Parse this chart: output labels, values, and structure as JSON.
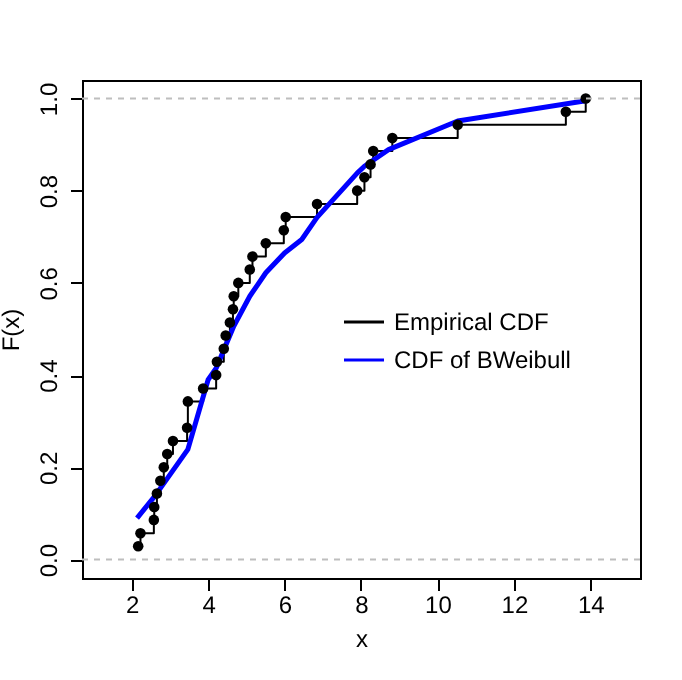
{
  "chart_data": {
    "type": "line",
    "xlabel": "x",
    "ylabel": "F(x)",
    "xlim": [
      0.7,
      15.3
    ],
    "ylim": [
      -0.04,
      1.04
    ],
    "xticks": [
      2,
      4,
      6,
      8,
      10,
      12,
      14
    ],
    "yticks": [
      {
        "value": 0,
        "label": "0.0"
      },
      0.2,
      0.4,
      0.6,
      0.8,
      {
        "value": 1,
        "label": "1.0"
      }
    ],
    "legend": "right",
    "grid": false,
    "ref_lines": [
      {
        "axis": "y",
        "value": 0,
        "color": "#bebebe",
        "line_style": "dashed"
      },
      {
        "axis": "y",
        "value": 1,
        "color": "#bebebe",
        "line_style": "dashed"
      }
    ],
    "series": [
      {
        "name": "Empirical CDF",
        "type": "step",
        "marker": "circle",
        "color": "#000000",
        "x": [
          2.17,
          2.23,
          2.58,
          2.59,
          2.66,
          2.75,
          2.84,
          2.93,
          3.08,
          3.45,
          3.47,
          3.87,
          4.21,
          4.23,
          4.41,
          4.46,
          4.57,
          4.65,
          4.67,
          4.79,
          5.09,
          5.16,
          5.51,
          5.98,
          6.03,
          6.85,
          7.9,
          8.09,
          8.25,
          8.32,
          8.82,
          10.53,
          13.36,
          13.88
        ],
        "values": [
          0.029,
          0.057,
          0.086,
          0.114,
          0.143,
          0.171,
          0.2,
          0.229,
          0.257,
          0.286,
          0.343,
          0.371,
          0.4,
          0.429,
          0.457,
          0.486,
          0.514,
          0.543,
          0.571,
          0.6,
          0.629,
          0.657,
          0.686,
          0.714,
          0.743,
          0.771,
          0.8,
          0.829,
          0.857,
          0.886,
          0.914,
          0.943,
          0.971,
          1.0
        ]
      },
      {
        "name": "CDF of BWeibull",
        "type": "line",
        "marker": "none",
        "color": "#0000ff",
        "x": [
          2.14,
          2.6,
          3.47,
          4.0,
          4.21,
          4.67,
          5.09,
          5.51,
          6.0,
          6.45,
          6.85,
          7.9,
          8.09,
          8.72,
          10.53,
          13.88
        ],
        "values": [
          0.09,
          0.137,
          0.239,
          0.39,
          0.415,
          0.506,
          0.571,
          0.622,
          0.665,
          0.694,
          0.742,
          0.838,
          0.853,
          0.889,
          0.951,
          0.995
        ]
      }
    ]
  }
}
